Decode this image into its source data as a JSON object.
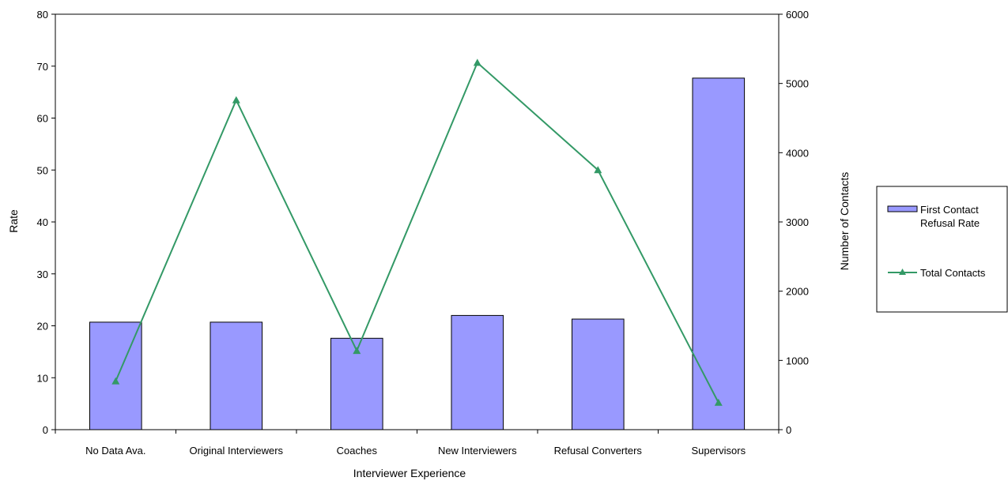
{
  "chart_data": {
    "type": "bar",
    "title": "",
    "xlabel": "Interviewer Experience",
    "ylabel": "Rate",
    "y2label": "Number of Contacts",
    "categories": [
      "No Data Ava.",
      "Original Interviewers",
      "Coaches",
      "New Interviewers",
      "Refusal Converters",
      "Supervisors"
    ],
    "ylim": [
      0,
      80
    ],
    "y2lim": [
      0,
      6000
    ],
    "yticks": [
      "0",
      "10",
      "20",
      "30",
      "40",
      "50",
      "60",
      "70",
      "80"
    ],
    "y2ticks": [
      "0",
      "1000",
      "2000",
      "3000",
      "4000",
      "5000",
      "6000"
    ],
    "grid": false,
    "legend": "right",
    "series": [
      {
        "name": "First Contact Refusal Rate",
        "legend_lines": [
          "First Contact",
          "Refusal Rate"
        ],
        "type": "bar",
        "axis": "left",
        "color": "#9999ff",
        "values": [
          20.7,
          20.7,
          17.6,
          22.0,
          21.3,
          67.7
        ]
      },
      {
        "name": "Total Contacts",
        "legend_lines": [
          "Total Contacts"
        ],
        "type": "line",
        "axis": "right",
        "marker": "triangle",
        "color": "#339966",
        "values": [
          700,
          4760,
          1140,
          5300,
          3750,
          390
        ]
      }
    ]
  }
}
